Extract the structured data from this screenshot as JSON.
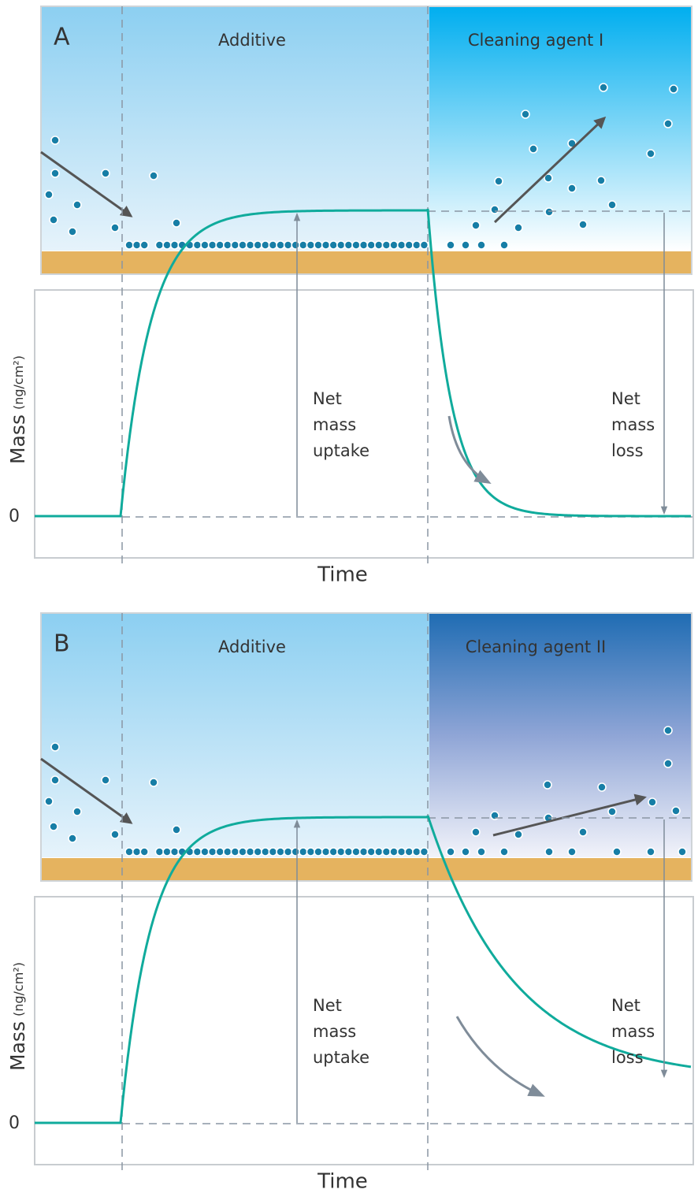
{
  "panels": [
    {
      "label": "A",
      "additive": "Additive",
      "agent": "Cleaning agent I",
      "y_label": "Mass",
      "y_unit": "(ng/cm²)",
      "zero": "0",
      "uptake": [
        "Net",
        "mass",
        "uptake"
      ],
      "loss": [
        "Net",
        "mass",
        "loss"
      ],
      "x_label": "Time"
    },
    {
      "label": "B",
      "additive": "Additive",
      "agent": "Cleaning agent II",
      "y_label": "Mass",
      "y_unit": "(ng/cm²)",
      "zero": "0",
      "uptake": [
        "Net",
        "mass",
        "uptake"
      ],
      "loss": [
        "Net",
        "mass",
        "loss"
      ],
      "x_label": "Time"
    }
  ]
}
